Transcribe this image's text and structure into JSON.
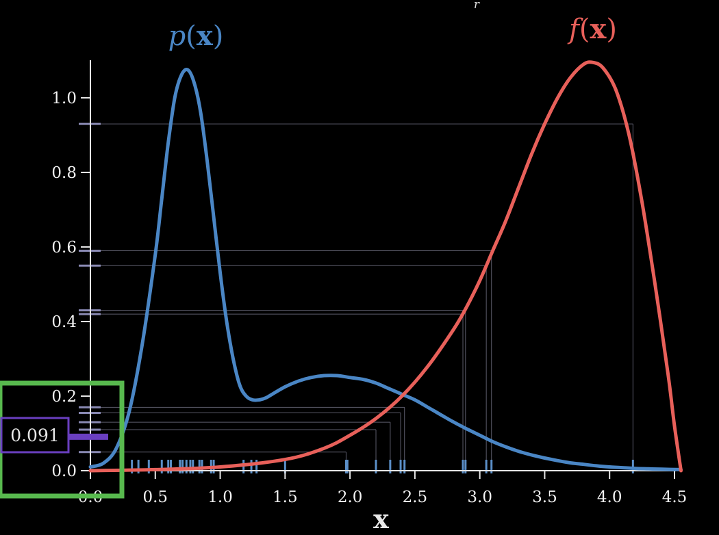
{
  "chart_data": {
    "type": "line",
    "xlabel": "x",
    "ylabel": "",
    "xlim": [
      0,
      4.55
    ],
    "ylim": [
      0,
      1.1
    ],
    "grid": false,
    "x_ticks": [
      {
        "value": 0.0,
        "label": "0.0"
      },
      {
        "value": 0.5,
        "label": "0.5"
      },
      {
        "value": 1.0,
        "label": "1.0"
      },
      {
        "value": 1.5,
        "label": "1.5"
      },
      {
        "value": 2.0,
        "label": "2.0"
      },
      {
        "value": 2.5,
        "label": "2.5"
      },
      {
        "value": 3.0,
        "label": "3.0"
      },
      {
        "value": 3.5,
        "label": "3.5"
      },
      {
        "value": 4.0,
        "label": "4.0"
      },
      {
        "value": 4.5,
        "label": "4.5"
      }
    ],
    "y_ticks": [
      {
        "value": 0.0,
        "label": "0.0"
      },
      {
        "value": 0.2,
        "label": "0.2"
      },
      {
        "value": 0.4,
        "label": "0.4"
      },
      {
        "value": 0.6,
        "label": "0.6"
      },
      {
        "value": 0.8,
        "label": "0.8"
      },
      {
        "value": 1.0,
        "label": "1.0"
      }
    ],
    "series": [
      {
        "name": "p(x)",
        "color": "#4a86c5",
        "x": [
          0.0,
          0.1,
          0.2,
          0.3,
          0.4,
          0.5,
          0.55,
          0.6,
          0.65,
          0.7,
          0.75,
          0.8,
          0.85,
          0.9,
          0.95,
          1.0,
          1.05,
          1.1,
          1.15,
          1.2,
          1.25,
          1.3,
          1.35,
          1.4,
          1.5,
          1.6,
          1.7,
          1.8,
          1.9,
          2.0,
          2.1,
          2.2,
          2.3,
          2.4,
          2.5,
          2.6,
          2.7,
          2.8,
          2.9,
          3.0,
          3.1,
          3.2,
          3.3,
          3.4,
          3.5,
          3.6,
          3.7,
          3.8,
          3.9,
          4.0,
          4.1,
          4.2,
          4.3,
          4.4,
          4.55
        ],
        "y": [
          0.01,
          0.02,
          0.06,
          0.16,
          0.34,
          0.58,
          0.73,
          0.88,
          1.0,
          1.06,
          1.075,
          1.04,
          0.96,
          0.83,
          0.68,
          0.53,
          0.4,
          0.3,
          0.23,
          0.2,
          0.19,
          0.19,
          0.195,
          0.205,
          0.225,
          0.24,
          0.25,
          0.255,
          0.255,
          0.25,
          0.245,
          0.235,
          0.22,
          0.205,
          0.19,
          0.17,
          0.15,
          0.13,
          0.112,
          0.095,
          0.078,
          0.064,
          0.052,
          0.042,
          0.034,
          0.027,
          0.021,
          0.017,
          0.013,
          0.01,
          0.008,
          0.006,
          0.005,
          0.004,
          0.003
        ]
      },
      {
        "name": "f(x)",
        "color": "#e8605a",
        "x": [
          0.0,
          0.5,
          1.0,
          1.5,
          1.8,
          2.0,
          2.2,
          2.4,
          2.6,
          2.8,
          2.9,
          3.0,
          3.1,
          3.2,
          3.3,
          3.4,
          3.5,
          3.6,
          3.7,
          3.8,
          3.87,
          3.95,
          4.05,
          4.15,
          4.25,
          4.35,
          4.45,
          4.5,
          4.55
        ],
        "y": [
          0.0,
          0.003,
          0.01,
          0.03,
          0.06,
          0.095,
          0.14,
          0.2,
          0.28,
          0.38,
          0.44,
          0.51,
          0.59,
          0.67,
          0.76,
          0.85,
          0.93,
          1.0,
          1.055,
          1.09,
          1.095,
          1.08,
          1.02,
          0.9,
          0.72,
          0.5,
          0.26,
          0.12,
          0.0
        ]
      }
    ],
    "titles": [
      {
        "series": "p(x)",
        "text_before": "p",
        "text_bold": "x",
        "text_after": ")",
        "open_paren": "(",
        "color": "#4a86c5"
      },
      {
        "series": "f(x)",
        "text_before": "f",
        "text_bold": "x",
        "text_after": ")",
        "open_paren": "(",
        "color": "#e8605a"
      }
    ],
    "samples": {
      "x": [
        0.32,
        0.37,
        0.45,
        0.55,
        0.6,
        0.62,
        0.69,
        0.71,
        0.74,
        0.77,
        0.79,
        0.84,
        0.86,
        0.93,
        0.95,
        1.18,
        1.24,
        1.28,
        1.5,
        1.97,
        1.98,
        2.2,
        2.31,
        2.39,
        2.42,
        2.87,
        2.89,
        3.05,
        3.09,
        4.18
      ],
      "projected": [
        {
          "x": 1.97,
          "f": 0.05
        },
        {
          "x": 2.2,
          "f": 0.11
        },
        {
          "x": 2.31,
          "f": 0.13
        },
        {
          "x": 2.39,
          "f": 0.155
        },
        {
          "x": 2.42,
          "f": 0.17
        },
        {
          "x": 2.87,
          "f": 0.42
        },
        {
          "x": 2.89,
          "f": 0.43
        },
        {
          "x": 3.05,
          "f": 0.55
        },
        {
          "x": 3.09,
          "f": 0.59
        },
        {
          "x": 4.18,
          "f": 0.93
        }
      ]
    },
    "highlight": {
      "value": 0.091,
      "label": "0.091",
      "color": "#6a3fc0",
      "box_color": "#58b94e"
    },
    "top_label": "r"
  }
}
